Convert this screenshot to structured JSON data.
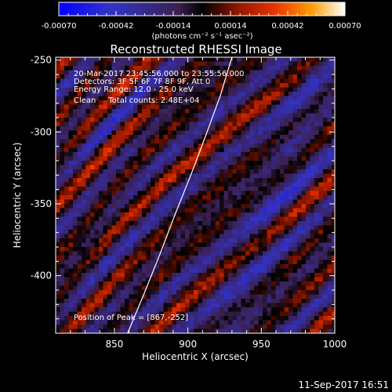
{
  "chart_data": {
    "type": "heatmap",
    "title": "Reconstructed RHESSI Image",
    "xlabel": "Heliocentric X (arcsec)",
    "ylabel": "Heliocentric Y (arcsec)",
    "xlim": [
      810,
      1000
    ],
    "ylim": [
      -440,
      -248
    ],
    "x_ticks": [
      850,
      900,
      950,
      1000
    ],
    "y_ticks": [
      -250,
      -300,
      -350,
      -400
    ],
    "colorbar": {
      "ticks": [
        "-0.00070",
        "-0.00042",
        "-0.00014",
        "0.00014",
        "0.00042",
        "0.00070"
      ],
      "unit_label": "(photons cm⁻² s⁻¹ asec⁻²)",
      "range": [
        -0.0007,
        0.0007
      ]
    },
    "annotations": [
      "20-Mar-2017 23:45:56.000 to 23:55:56.000",
      "Detectors: 3F 5F 6F 7F 8F 9F, Att 0",
      "Energy Range: 12.0 - 25.0 keV",
      "Clean     Total counts: 2.48E+04"
    ],
    "peak_text": "Position of Peak = [867,-252]",
    "peak": [
      867,
      -252
    ],
    "limb": [
      [
        859,
        -440
      ],
      [
        870,
        -413
      ],
      [
        881,
        -385
      ],
      [
        891,
        -358
      ],
      [
        902,
        -330
      ],
      [
        912,
        -303
      ],
      [
        922,
        -275
      ],
      [
        930,
        -248
      ]
    ]
  },
  "footer_timestamp": "11-Sep-2017 16:51"
}
